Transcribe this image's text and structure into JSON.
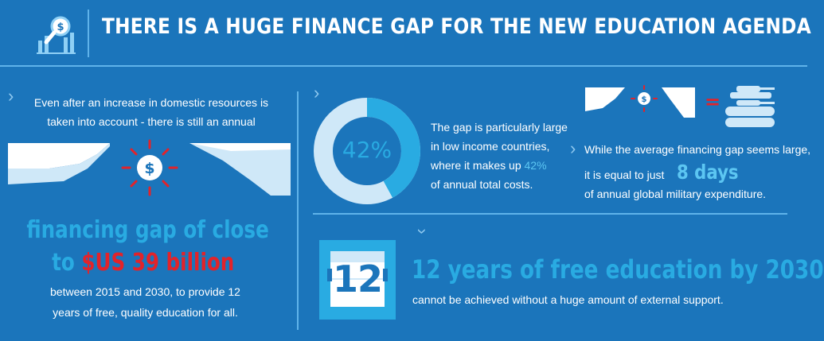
{
  "header": {
    "title": "THERE IS A HUGE FINANCE GAP FOR THE NEW EDUCATION AGENDA"
  },
  "left": {
    "intro_line1": "Even after an increase in domestic resources is",
    "intro_line2": "taken into account - there is still an annual",
    "gap_line1": "financing gap of close",
    "gap_prefix": "to ",
    "gap_amount": "$US 39 billion",
    "detail_line1": "between 2015 and 2030, to provide 12",
    "detail_line2": "years of free, quality education for all.",
    "dollar_symbol": "$"
  },
  "donut": {
    "label": "42%",
    "value_percent": 42
  },
  "lowincome": {
    "line1": "The gap is particularly large",
    "line2": "in low income countries,",
    "line3_prefix": "where it makes up ",
    "line3_value": "42%",
    "line4": "of annual total costs."
  },
  "military": {
    "line1": "While the average financing gap seems large,",
    "line2_prefix": "it is equal to just",
    "days": "8 days",
    "line3": "of annual global military expenditure.",
    "equals": "=",
    "dollar_symbol": "$"
  },
  "calendar": {
    "number": "12"
  },
  "free_education": {
    "headline": "12 years of free education by 2030",
    "sub": "cannot be achieved without a huge amount of external support."
  },
  "colors": {
    "background": "#1b75bb",
    "cyan": "#29abe2",
    "red": "#e2232a",
    "light": "#cfe8f8"
  }
}
